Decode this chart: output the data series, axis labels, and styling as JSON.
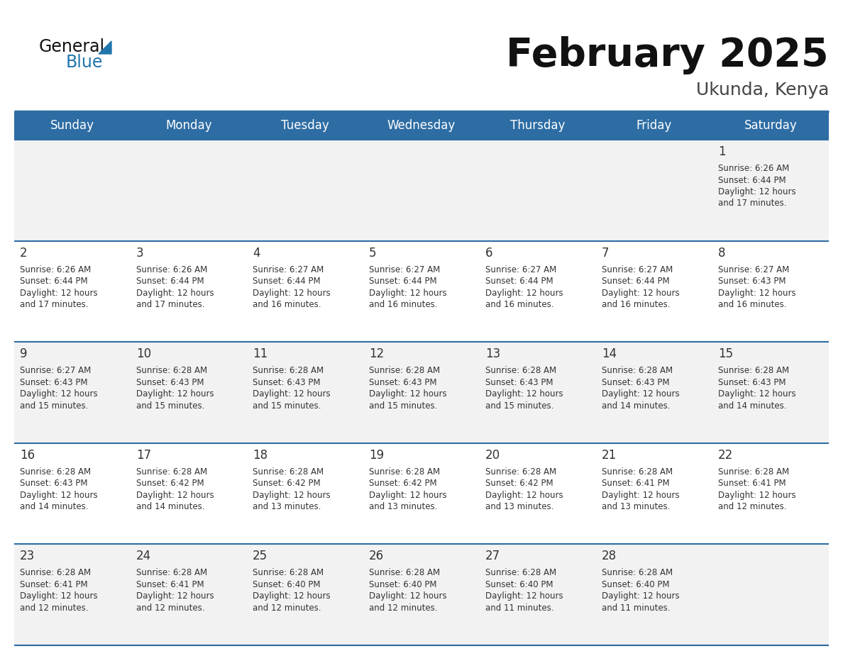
{
  "title": "February 2025",
  "subtitle": "Ukunda, Kenya",
  "days_of_week": [
    "Sunday",
    "Monday",
    "Tuesday",
    "Wednesday",
    "Thursday",
    "Friday",
    "Saturday"
  ],
  "header_bg": "#2E6DA4",
  "header_text": "#FFFFFF",
  "cell_bg_odd": "#F2F2F2",
  "cell_bg_even": "#FFFFFF",
  "border_color": "#2E6DA4",
  "day_num_color": "#333333",
  "info_text_color": "#333333",
  "title_color": "#111111",
  "subtitle_color": "#444444",
  "logo_black": "#111111",
  "logo_blue": "#2176AE",
  "logo_triangle": "#2176AE",
  "calendar_data": [
    [
      {
        "day": null,
        "sunrise": null,
        "sunset": null,
        "daylight_line1": null,
        "daylight_line2": null
      },
      {
        "day": null,
        "sunrise": null,
        "sunset": null,
        "daylight_line1": null,
        "daylight_line2": null
      },
      {
        "day": null,
        "sunrise": null,
        "sunset": null,
        "daylight_line1": null,
        "daylight_line2": null
      },
      {
        "day": null,
        "sunrise": null,
        "sunset": null,
        "daylight_line1": null,
        "daylight_line2": null
      },
      {
        "day": null,
        "sunrise": null,
        "sunset": null,
        "daylight_line1": null,
        "daylight_line2": null
      },
      {
        "day": null,
        "sunrise": null,
        "sunset": null,
        "daylight_line1": null,
        "daylight_line2": null
      },
      {
        "day": "1",
        "sunrise": "6:26 AM",
        "sunset": "6:44 PM",
        "daylight_line1": "Daylight: 12 hours",
        "daylight_line2": "and 17 minutes."
      }
    ],
    [
      {
        "day": "2",
        "sunrise": "6:26 AM",
        "sunset": "6:44 PM",
        "daylight_line1": "Daylight: 12 hours",
        "daylight_line2": "and 17 minutes."
      },
      {
        "day": "3",
        "sunrise": "6:26 AM",
        "sunset": "6:44 PM",
        "daylight_line1": "Daylight: 12 hours",
        "daylight_line2": "and 17 minutes."
      },
      {
        "day": "4",
        "sunrise": "6:27 AM",
        "sunset": "6:44 PM",
        "daylight_line1": "Daylight: 12 hours",
        "daylight_line2": "and 16 minutes."
      },
      {
        "day": "5",
        "sunrise": "6:27 AM",
        "sunset": "6:44 PM",
        "daylight_line1": "Daylight: 12 hours",
        "daylight_line2": "and 16 minutes."
      },
      {
        "day": "6",
        "sunrise": "6:27 AM",
        "sunset": "6:44 PM",
        "daylight_line1": "Daylight: 12 hours",
        "daylight_line2": "and 16 minutes."
      },
      {
        "day": "7",
        "sunrise": "6:27 AM",
        "sunset": "6:44 PM",
        "daylight_line1": "Daylight: 12 hours",
        "daylight_line2": "and 16 minutes."
      },
      {
        "day": "8",
        "sunrise": "6:27 AM",
        "sunset": "6:43 PM",
        "daylight_line1": "Daylight: 12 hours",
        "daylight_line2": "and 16 minutes."
      }
    ],
    [
      {
        "day": "9",
        "sunrise": "6:27 AM",
        "sunset": "6:43 PM",
        "daylight_line1": "Daylight: 12 hours",
        "daylight_line2": "and 15 minutes."
      },
      {
        "day": "10",
        "sunrise": "6:28 AM",
        "sunset": "6:43 PM",
        "daylight_line1": "Daylight: 12 hours",
        "daylight_line2": "and 15 minutes."
      },
      {
        "day": "11",
        "sunrise": "6:28 AM",
        "sunset": "6:43 PM",
        "daylight_line1": "Daylight: 12 hours",
        "daylight_line2": "and 15 minutes."
      },
      {
        "day": "12",
        "sunrise": "6:28 AM",
        "sunset": "6:43 PM",
        "daylight_line1": "Daylight: 12 hours",
        "daylight_line2": "and 15 minutes."
      },
      {
        "day": "13",
        "sunrise": "6:28 AM",
        "sunset": "6:43 PM",
        "daylight_line1": "Daylight: 12 hours",
        "daylight_line2": "and 15 minutes."
      },
      {
        "day": "14",
        "sunrise": "6:28 AM",
        "sunset": "6:43 PM",
        "daylight_line1": "Daylight: 12 hours",
        "daylight_line2": "and 14 minutes."
      },
      {
        "day": "15",
        "sunrise": "6:28 AM",
        "sunset": "6:43 PM",
        "daylight_line1": "Daylight: 12 hours",
        "daylight_line2": "and 14 minutes."
      }
    ],
    [
      {
        "day": "16",
        "sunrise": "6:28 AM",
        "sunset": "6:43 PM",
        "daylight_line1": "Daylight: 12 hours",
        "daylight_line2": "and 14 minutes."
      },
      {
        "day": "17",
        "sunrise": "6:28 AM",
        "sunset": "6:42 PM",
        "daylight_line1": "Daylight: 12 hours",
        "daylight_line2": "and 14 minutes."
      },
      {
        "day": "18",
        "sunrise": "6:28 AM",
        "sunset": "6:42 PM",
        "daylight_line1": "Daylight: 12 hours",
        "daylight_line2": "and 13 minutes."
      },
      {
        "day": "19",
        "sunrise": "6:28 AM",
        "sunset": "6:42 PM",
        "daylight_line1": "Daylight: 12 hours",
        "daylight_line2": "and 13 minutes."
      },
      {
        "day": "20",
        "sunrise": "6:28 AM",
        "sunset": "6:42 PM",
        "daylight_line1": "Daylight: 12 hours",
        "daylight_line2": "and 13 minutes."
      },
      {
        "day": "21",
        "sunrise": "6:28 AM",
        "sunset": "6:41 PM",
        "daylight_line1": "Daylight: 12 hours",
        "daylight_line2": "and 13 minutes."
      },
      {
        "day": "22",
        "sunrise": "6:28 AM",
        "sunset": "6:41 PM",
        "daylight_line1": "Daylight: 12 hours",
        "daylight_line2": "and 12 minutes."
      }
    ],
    [
      {
        "day": "23",
        "sunrise": "6:28 AM",
        "sunset": "6:41 PM",
        "daylight_line1": "Daylight: 12 hours",
        "daylight_line2": "and 12 minutes."
      },
      {
        "day": "24",
        "sunrise": "6:28 AM",
        "sunset": "6:41 PM",
        "daylight_line1": "Daylight: 12 hours",
        "daylight_line2": "and 12 minutes."
      },
      {
        "day": "25",
        "sunrise": "6:28 AM",
        "sunset": "6:40 PM",
        "daylight_line1": "Daylight: 12 hours",
        "daylight_line2": "and 12 minutes."
      },
      {
        "day": "26",
        "sunrise": "6:28 AM",
        "sunset": "6:40 PM",
        "daylight_line1": "Daylight: 12 hours",
        "daylight_line2": "and 12 minutes."
      },
      {
        "day": "27",
        "sunrise": "6:28 AM",
        "sunset": "6:40 PM",
        "daylight_line1": "Daylight: 12 hours",
        "daylight_line2": "and 11 minutes."
      },
      {
        "day": "28",
        "sunrise": "6:28 AM",
        "sunset": "6:40 PM",
        "daylight_line1": "Daylight: 12 hours",
        "daylight_line2": "and 11 minutes."
      },
      {
        "day": null,
        "sunrise": null,
        "sunset": null,
        "daylight_line1": null,
        "daylight_line2": null
      }
    ]
  ]
}
